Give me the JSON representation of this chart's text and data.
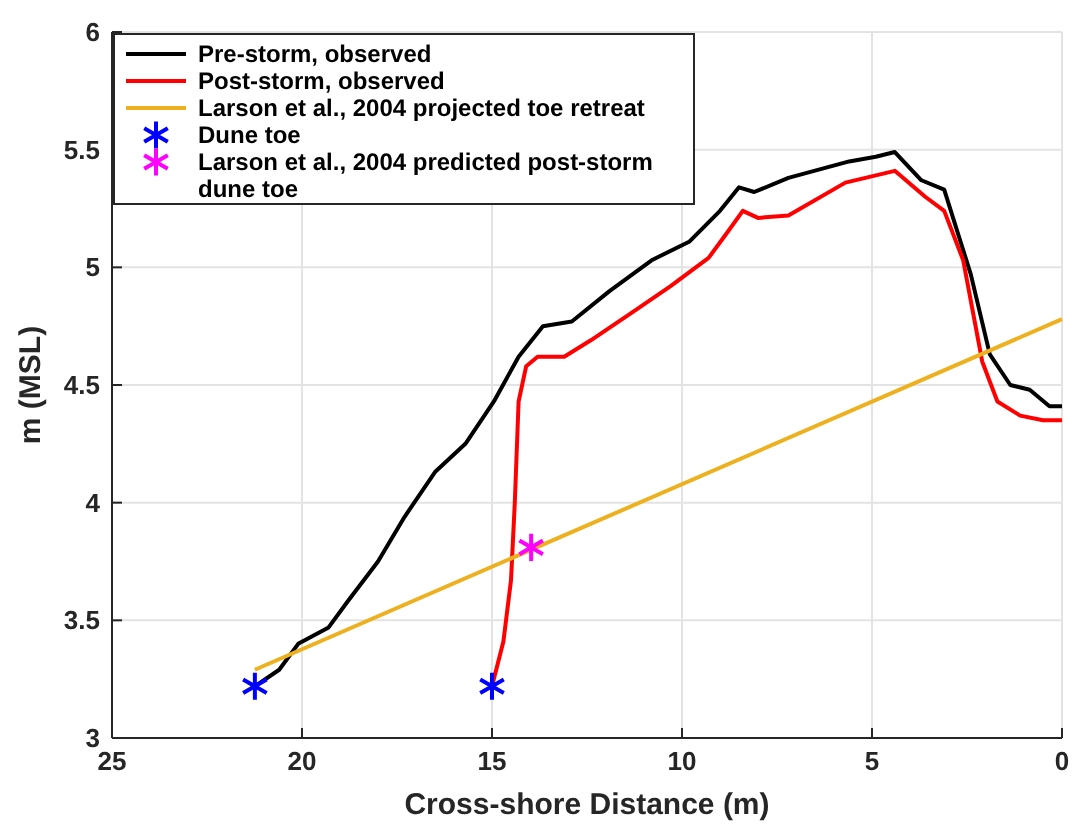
{
  "chart_data": {
    "type": "line",
    "xlabel": "Cross-shore Distance (m)",
    "ylabel": "m (MSL)",
    "xlim": [
      25,
      0
    ],
    "xticks": [
      25,
      20,
      15,
      10,
      5,
      0
    ],
    "ylim": [
      3,
      6
    ],
    "yticks": [
      3,
      3.5,
      4,
      4.5,
      5,
      5.5,
      6
    ],
    "grid": true,
    "legend": "top left",
    "series": [
      {
        "name": "Pre-storm, observed",
        "color": "#000000",
        "marker": "none",
        "x": [
          21.24,
          20.6,
          20.1,
          19.3,
          18.8,
          18.0,
          17.3,
          16.5,
          15.7,
          14.95,
          14.3,
          13.66,
          12.9,
          11.9,
          10.8,
          9.8,
          9.0,
          8.5,
          8.1,
          7.2,
          5.6,
          4.9,
          4.4,
          3.7,
          3.1,
          2.4,
          1.9,
          1.36,
          0.85,
          0.33,
          0
        ],
        "values": [
          3.22,
          3.29,
          3.4,
          3.47,
          3.58,
          3.75,
          3.94,
          4.13,
          4.25,
          4.43,
          4.62,
          4.75,
          4.77,
          4.9,
          5.03,
          5.11,
          5.24,
          5.34,
          5.32,
          5.38,
          5.45,
          5.47,
          5.49,
          5.37,
          5.33,
          4.97,
          4.63,
          4.5,
          4.48,
          4.41,
          4.41
        ]
      },
      {
        "name": "Post-storm, observed",
        "color": "#ff0000",
        "marker": "none",
        "x": [
          15.0,
          14.7,
          14.5,
          14.4,
          14.3,
          14.1,
          13.8,
          13.1,
          12.4,
          11.3,
          10.3,
          9.3,
          8.8,
          8.4,
          8.0,
          7.2,
          5.7,
          4.4,
          3.6,
          3.1,
          2.6,
          2.1,
          1.7,
          1.1,
          0.5,
          0
        ],
        "values": [
          3.22,
          3.41,
          3.67,
          4.0,
          4.43,
          4.58,
          4.62,
          4.62,
          4.69,
          4.81,
          4.92,
          5.04,
          5.15,
          5.24,
          5.21,
          5.22,
          5.36,
          5.41,
          5.3,
          5.24,
          5.03,
          4.6,
          4.43,
          4.37,
          4.35,
          4.35
        ]
      },
      {
        "name": "Larson et al., 2004 projected toe retreat",
        "color": "#edb120",
        "marker": "none",
        "x": [
          21.24,
          0
        ],
        "values": [
          3.29,
          4.78
        ]
      },
      {
        "name": "Dune toe",
        "type": "scatter",
        "color": "#0000ff",
        "marker": "cross",
        "x": [
          21.24,
          15.0
        ],
        "values": [
          3.22,
          3.22
        ]
      },
      {
        "name": "Larson et al., 2004 predicted post-storm dune toe",
        "type": "scatter",
        "color": "#ff00ff",
        "marker": "cross",
        "x": [
          13.97
        ],
        "values": [
          3.81
        ]
      }
    ]
  }
}
